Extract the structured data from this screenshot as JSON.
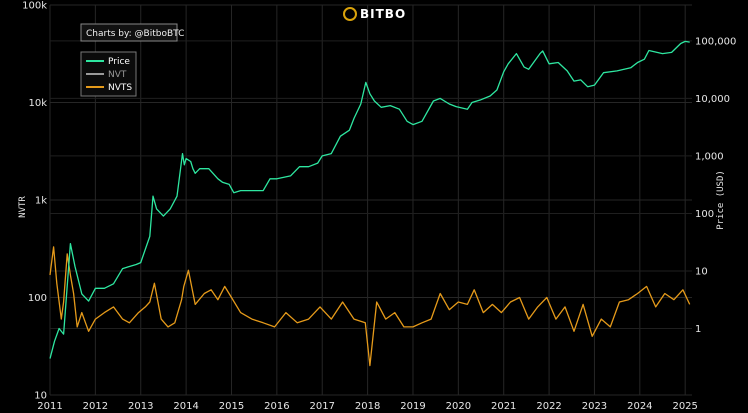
{
  "brand": {
    "name": "BITBO",
    "icon": "bitcoin-coin-icon",
    "accent": "#d9a20b"
  },
  "credit": "Charts by: @BitboBTC",
  "chart_data": {
    "type": "line",
    "xlabel": "",
    "ylabel_left": "NVTR",
    "ylabel_right": "Price (USD)",
    "x_ticks": [
      "2011",
      "2012",
      "2013",
      "2014",
      "2015",
      "2016",
      "2017",
      "2018",
      "2019",
      "2020",
      "2021",
      "2022",
      "2023",
      "2024",
      "2025"
    ],
    "x_range": [
      2011.0,
      2025.15
    ],
    "y_left": {
      "scale": "log",
      "range": [
        10,
        100000
      ],
      "ticks": [
        "10",
        "100",
        "1k",
        "10k",
        "100k"
      ]
    },
    "y_right": {
      "scale": "log",
      "range": [
        0.07,
        420000
      ],
      "ticks": [
        "1",
        "10",
        "100",
        "1,000",
        "10,000",
        "100,000"
      ]
    },
    "grid": true,
    "legend_position": "top-left",
    "series": [
      {
        "name": "Price",
        "color": "#2ee6a0",
        "axis": "right",
        "x": [
          2011.0,
          2011.1,
          2011.2,
          2011.3,
          2011.42,
          2011.45,
          2011.55,
          2011.7,
          2011.85,
          2012.0,
          2012.2,
          2012.4,
          2012.6,
          2012.75,
          2012.9,
          2013.0,
          2013.2,
          2013.27,
          2013.35,
          2013.5,
          2013.65,
          2013.8,
          2013.92,
          2013.96,
          2014.0,
          2014.1,
          2014.15,
          2014.2,
          2014.3,
          2014.5,
          2014.7,
          2014.8,
          2014.95,
          2015.05,
          2015.2,
          2015.5,
          2015.7,
          2015.85,
          2016.0,
          2016.3,
          2016.5,
          2016.7,
          2016.9,
          2017.0,
          2017.2,
          2017.4,
          2017.6,
          2017.7,
          2017.85,
          2017.96,
          2018.05,
          2018.15,
          2018.3,
          2018.5,
          2018.7,
          2018.87,
          2019.0,
          2019.2,
          2019.45,
          2019.6,
          2019.8,
          2019.95,
          2020.2,
          2020.3,
          2020.5,
          2020.7,
          2020.85,
          2021.0,
          2021.1,
          2021.28,
          2021.45,
          2021.55,
          2021.8,
          2021.86,
          2022.0,
          2022.2,
          2022.4,
          2022.55,
          2022.7,
          2022.85,
          2023.0,
          2023.2,
          2023.5,
          2023.8,
          2023.95,
          2024.1,
          2024.2,
          2024.5,
          2024.7,
          2024.9,
          2025.0,
          2025.1
        ],
        "values": [
          0.3,
          0.6,
          1.0,
          0.8,
          15,
          30,
          12,
          4,
          3,
          5,
          5,
          6,
          11,
          12,
          13,
          14,
          40,
          200,
          120,
          90,
          120,
          200,
          1100,
          700,
          900,
          800,
          600,
          500,
          600,
          600,
          400,
          350,
          320,
          230,
          250,
          250,
          250,
          400,
          400,
          450,
          650,
          650,
          750,
          1000,
          1100,
          2200,
          2800,
          4500,
          8000,
          19000,
          12000,
          9000,
          7000,
          7500,
          6500,
          4000,
          3500,
          4000,
          9000,
          10000,
          8000,
          7200,
          6500,
          8500,
          9500,
          11000,
          14000,
          29000,
          40000,
          60000,
          35000,
          32000,
          60000,
          67000,
          40000,
          42000,
          30000,
          20000,
          21000,
          16000,
          17000,
          28000,
          30000,
          34000,
          42000,
          48000,
          68000,
          60000,
          63000,
          90000,
          98000,
          95000
        ]
      },
      {
        "name": "NVT",
        "color": "#9a9a9a",
        "axis": "left",
        "x": [],
        "values": []
      },
      {
        "name": "NVTS",
        "color": "#e59a1a",
        "axis": "left",
        "x": [
          2011.0,
          2011.08,
          2011.15,
          2011.25,
          2011.3,
          2011.38,
          2011.45,
          2011.52,
          2011.6,
          2011.7,
          2011.85,
          2012.0,
          2012.2,
          2012.4,
          2012.6,
          2012.75,
          2012.95,
          2013.1,
          2013.2,
          2013.3,
          2013.45,
          2013.6,
          2013.75,
          2013.9,
          2013.95,
          2014.05,
          2014.2,
          2014.4,
          2014.55,
          2014.7,
          2014.85,
          2015.0,
          2015.2,
          2015.45,
          2015.7,
          2015.95,
          2016.2,
          2016.45,
          2016.7,
          2016.95,
          2017.2,
          2017.45,
          2017.7,
          2017.95,
          2018.05,
          2018.2,
          2018.4,
          2018.6,
          2018.8,
          2019.0,
          2019.2,
          2019.4,
          2019.6,
          2019.8,
          2020.0,
          2020.2,
          2020.35,
          2020.55,
          2020.75,
          2020.95,
          2021.15,
          2021.35,
          2021.55,
          2021.75,
          2021.95,
          2022.15,
          2022.35,
          2022.55,
          2022.75,
          2022.95,
          2023.15,
          2023.35,
          2023.55,
          2023.75,
          2023.95,
          2024.15,
          2024.35,
          2024.55,
          2024.75,
          2024.95,
          2025.1
        ],
        "values": [
          170,
          330,
          140,
          60,
          90,
          280,
          170,
          110,
          50,
          70,
          45,
          60,
          70,
          80,
          60,
          55,
          70,
          80,
          90,
          140,
          60,
          50,
          55,
          95,
          130,
          190,
          85,
          110,
          120,
          95,
          130,
          100,
          70,
          60,
          55,
          50,
          70,
          55,
          60,
          80,
          60,
          90,
          60,
          55,
          20,
          90,
          60,
          70,
          50,
          50,
          55,
          60,
          110,
          75,
          90,
          85,
          120,
          70,
          85,
          70,
          90,
          100,
          60,
          80,
          100,
          60,
          80,
          45,
          85,
          40,
          60,
          50,
          90,
          95,
          110,
          130,
          80,
          110,
          95,
          120,
          85
        ]
      }
    ]
  }
}
